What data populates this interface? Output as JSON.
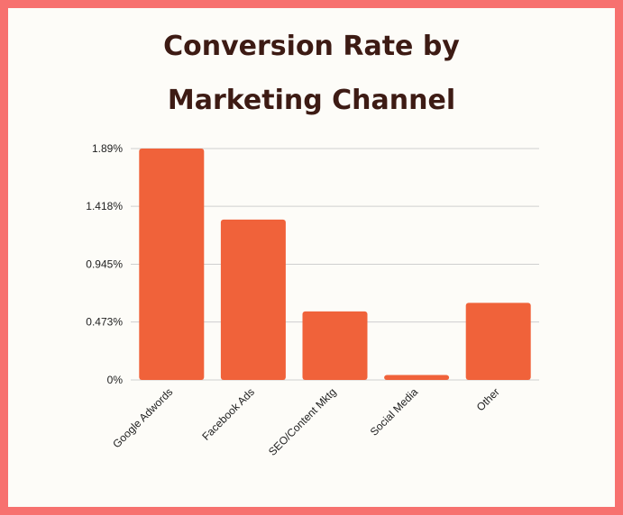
{
  "chart_data": {
    "type": "bar",
    "title_lines": [
      "Conversion Rate by",
      "Marketing Channel"
    ],
    "categories": [
      "Google Adwords",
      "Facebook Ads",
      "SEO/Content Mktg",
      "Social Media",
      "Other"
    ],
    "values": [
      1.89,
      1.31,
      0.56,
      0.04,
      0.63
    ],
    "value_unit": "%",
    "yticks": [
      "0%",
      "0.473%",
      "0.945%",
      "1.418%",
      "1.89%"
    ],
    "ytick_values": [
      0,
      0.473,
      0.945,
      1.418,
      1.89
    ],
    "ylim": [
      0,
      1.89
    ],
    "xlabel": "",
    "ylabel": "",
    "grid": true,
    "legend": "none",
    "bar_color": "#f0623a",
    "grid_color": "#cfcfcf"
  }
}
